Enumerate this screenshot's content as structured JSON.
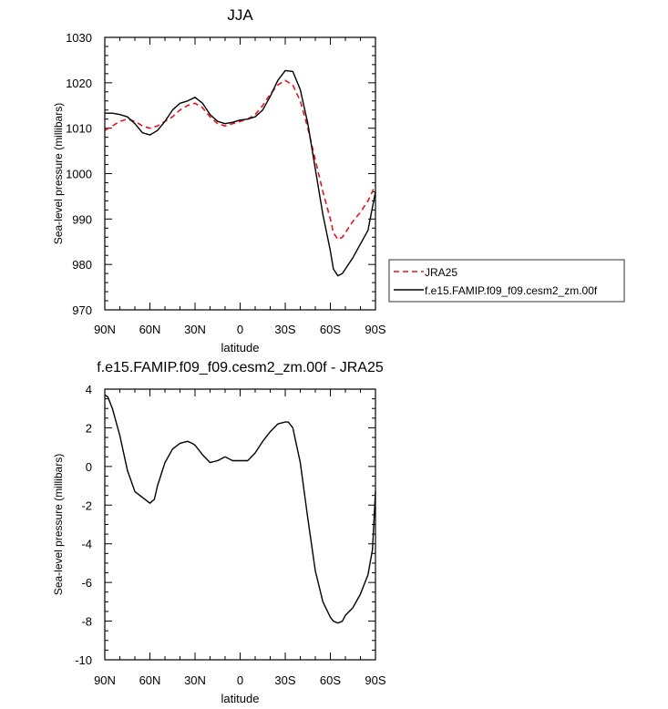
{
  "chart_data": [
    {
      "type": "line",
      "title": "JJA",
      "xlabel": "latitude",
      "ylabel": "Sea-level pressure (millibars)",
      "xlim": [
        -90,
        90
      ],
      "ylim": [
        970,
        1030
      ],
      "xticks": [
        -90,
        -60,
        -30,
        0,
        30,
        60,
        90
      ],
      "xtick_labels": [
        "90N",
        "60N",
        "30N",
        "0",
        "30S",
        "60S",
        "90S"
      ],
      "yticks": [
        970,
        980,
        990,
        1000,
        1010,
        1020,
        1030
      ],
      "ytick_labels": [
        "970",
        "980",
        "990",
        "1000",
        "1010",
        "1020",
        "1030"
      ],
      "legend": {
        "position": "right",
        "entries": [
          "JRA25",
          "f.e15.FAMIP.f09_f09.cesm2_zm.00f"
        ]
      },
      "series": [
        {
          "name": "JRA25",
          "color": "#e8141c",
          "dash": "dashed",
          "x": [
            -90,
            -85,
            -80,
            -75,
            -70,
            -65,
            -60,
            -55,
            -50,
            -45,
            -40,
            -35,
            -30,
            -25,
            -20,
            -15,
            -10,
            -5,
            0,
            5,
            10,
            15,
            20,
            25,
            30,
            35,
            40,
            45,
            50,
            55,
            60,
            62,
            65,
            68,
            70,
            75,
            80,
            85,
            90
          ],
          "y": [
            1009.5,
            1010.5,
            1011.5,
            1012,
            1011.5,
            1010.5,
            1010,
            1010.5,
            1011.5,
            1012.5,
            1014,
            1015,
            1015.5,
            1014.5,
            1012.5,
            1011,
            1010.5,
            1011,
            1011.5,
            1012,
            1013,
            1015,
            1017.5,
            1019.5,
            1020.5,
            1019.5,
            1016,
            1010,
            1003,
            996,
            990,
            987,
            985.5,
            986,
            987,
            989.5,
            991.5,
            994,
            997.5
          ]
        },
        {
          "name": "f.e15.FAMIP.f09_f09.cesm2_zm.00f",
          "color": "#000000",
          "dash": "solid",
          "x": [
            -90,
            -85,
            -80,
            -75,
            -70,
            -65,
            -60,
            -55,
            -50,
            -45,
            -40,
            -35,
            -30,
            -25,
            -20,
            -15,
            -10,
            -5,
            0,
            5,
            10,
            15,
            20,
            25,
            30,
            35,
            40,
            45,
            50,
            55,
            60,
            62,
            65,
            68,
            70,
            75,
            80,
            85,
            90
          ],
          "y": [
            1013.3,
            1013.3,
            1013,
            1012.5,
            1011,
            1009,
            1008.5,
            1009.5,
            1011.5,
            1014,
            1015.5,
            1016,
            1016.8,
            1015.5,
            1013,
            1011.5,
            1011,
            1011.3,
            1011.8,
            1012,
            1012.5,
            1014,
            1017,
            1020.5,
            1022.7,
            1022.5,
            1018.5,
            1011,
            1001,
            991,
            983,
            979,
            977.5,
            978,
            979,
            981.5,
            984.5,
            987.5,
            996
          ]
        }
      ]
    },
    {
      "type": "line",
      "title": "f.e15.FAMIP.f09_f09.cesm2_zm.00f - JRA25",
      "xlabel": "latitude",
      "ylabel": "Sea-level pressure (millibars)",
      "xlim": [
        -90,
        90
      ],
      "ylim": [
        -10,
        4
      ],
      "xticks": [
        -90,
        -60,
        -30,
        0,
        30,
        60,
        90
      ],
      "xtick_labels": [
        "90N",
        "60N",
        "30N",
        "0",
        "30S",
        "60S",
        "90S"
      ],
      "yticks": [
        -10,
        -8,
        -6,
        -4,
        -2,
        0,
        2,
        4
      ],
      "ytick_labels": [
        "-10",
        "-8",
        "-6",
        "-4",
        "-2",
        "0",
        "2",
        "4"
      ],
      "series": [
        {
          "name": "difference",
          "color": "#000000",
          "dash": "solid",
          "x": [
            -90,
            -88,
            -85,
            -80,
            -75,
            -70,
            -65,
            -60,
            -57,
            -55,
            -50,
            -45,
            -40,
            -35,
            -32,
            -30,
            -25,
            -20,
            -15,
            -10,
            -5,
            0,
            5,
            10,
            15,
            20,
            25,
            30,
            32,
            35,
            40,
            45,
            50,
            55,
            60,
            62,
            65,
            68,
            70,
            75,
            80,
            85,
            88,
            90
          ],
          "y": [
            3.7,
            3.6,
            3.0,
            1.6,
            -0.2,
            -1.3,
            -1.6,
            -1.9,
            -1.7,
            -1.0,
            0.2,
            0.9,
            1.2,
            1.3,
            1.2,
            1.1,
            0.6,
            0.2,
            0.3,
            0.5,
            0.3,
            0.3,
            0.3,
            0.7,
            1.3,
            1.8,
            2.2,
            2.3,
            2.3,
            2.0,
            0.2,
            -2.7,
            -5.4,
            -7.0,
            -7.8,
            -8.0,
            -8.1,
            -8.0,
            -7.7,
            -7.3,
            -6.6,
            -5.6,
            -4.3,
            -1.3
          ]
        }
      ]
    }
  ]
}
